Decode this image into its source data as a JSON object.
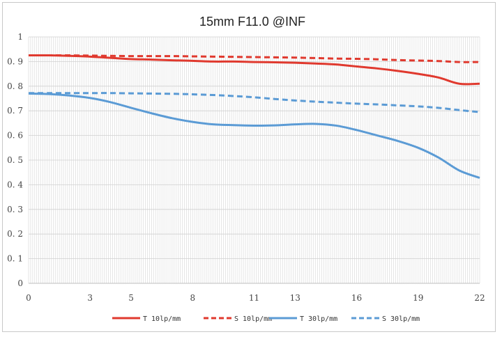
{
  "chart_data": {
    "type": "line",
    "title": "15mm F11.0 @INF",
    "xlabel": "",
    "ylabel": "",
    "xlim": [
      0,
      22
    ],
    "ylim": [
      0,
      1
    ],
    "x_ticks": [
      0,
      3,
      5,
      8,
      11,
      13,
      16,
      19,
      22
    ],
    "x_tick_labels": [
      "0",
      "3",
      "5",
      "8",
      "11",
      "13",
      "16",
      "19",
      "22"
    ],
    "y_ticks": [
      0,
      0.1,
      0.2,
      0.3,
      0.4,
      0.5,
      0.6,
      0.7,
      0.8,
      0.9,
      1
    ],
    "y_tick_labels": [
      "0",
      "0. 1",
      "0. 2",
      "0. 3",
      "0. 4",
      "0. 5",
      "0. 6",
      "0. 7",
      "0. 8",
      "0. 9",
      "1"
    ],
    "grid": true,
    "legend_position": "bottom",
    "x": [
      0,
      1,
      2,
      3,
      4,
      5,
      6,
      7,
      8,
      9,
      10,
      11,
      12,
      13,
      14,
      15,
      16,
      17,
      18,
      19,
      20,
      21,
      22
    ],
    "series": [
      {
        "name": "T 10lp/mm",
        "color": "#e0392e",
        "dash": "solid",
        "values": [
          0.925,
          0.925,
          0.923,
          0.92,
          0.915,
          0.91,
          0.908,
          0.905,
          0.903,
          0.9,
          0.9,
          0.898,
          0.897,
          0.895,
          0.892,
          0.888,
          0.88,
          0.872,
          0.862,
          0.85,
          0.835,
          0.81,
          0.81
        ]
      },
      {
        "name": "S 10lp/mm",
        "color": "#e0392e",
        "dash": "dashed",
        "values": [
          0.925,
          0.925,
          0.925,
          0.924,
          0.923,
          0.922,
          0.922,
          0.922,
          0.921,
          0.92,
          0.919,
          0.918,
          0.917,
          0.916,
          0.914,
          0.912,
          0.911,
          0.909,
          0.906,
          0.904,
          0.902,
          0.898,
          0.898
        ]
      },
      {
        "name": "T 30lp/mm",
        "color": "#5b9bd5",
        "dash": "solid",
        "values": [
          0.77,
          0.768,
          0.762,
          0.752,
          0.735,
          0.712,
          0.69,
          0.67,
          0.655,
          0.645,
          0.642,
          0.64,
          0.641,
          0.645,
          0.647,
          0.64,
          0.622,
          0.6,
          0.578,
          0.55,
          0.51,
          0.458,
          0.428
        ]
      },
      {
        "name": "S 30lp/mm",
        "color": "#5b9bd5",
        "dash": "dashed",
        "values": [
          0.772,
          0.772,
          0.772,
          0.772,
          0.772,
          0.771,
          0.77,
          0.769,
          0.767,
          0.764,
          0.76,
          0.755,
          0.748,
          0.742,
          0.737,
          0.733,
          0.729,
          0.726,
          0.722,
          0.718,
          0.712,
          0.703,
          0.695
        ]
      }
    ]
  }
}
